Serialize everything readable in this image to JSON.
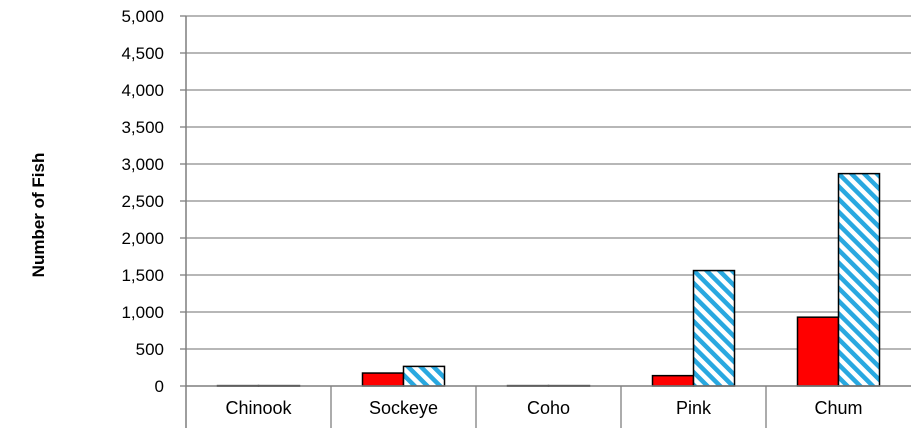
{
  "chart_data": {
    "type": "bar",
    "ylabel": "Number of Fish",
    "xlabel": "",
    "ylim": [
      0,
      5000
    ],
    "yticks": [
      0,
      500,
      1000,
      1500,
      2000,
      2500,
      3000,
      3500,
      4000,
      4500,
      5000
    ],
    "ytick_labels": [
      "0",
      "500",
      "1,000",
      "1,500",
      "2,000",
      "2,500",
      "3,000",
      "3,500",
      "4,000",
      "4,500",
      "5,000"
    ],
    "categories": [
      "Chinook",
      "Sockeye",
      "Coho",
      "Pink",
      "Chum"
    ],
    "grid": true,
    "series": [
      {
        "values": [
          5,
          175,
          5,
          140,
          930
        ],
        "color": "#ff0000",
        "pattern": "solid"
      },
      {
        "values": [
          5,
          265,
          5,
          1560,
          2870
        ],
        "color": "#29a8e0",
        "pattern": "diagonal-hatch"
      }
    ]
  }
}
